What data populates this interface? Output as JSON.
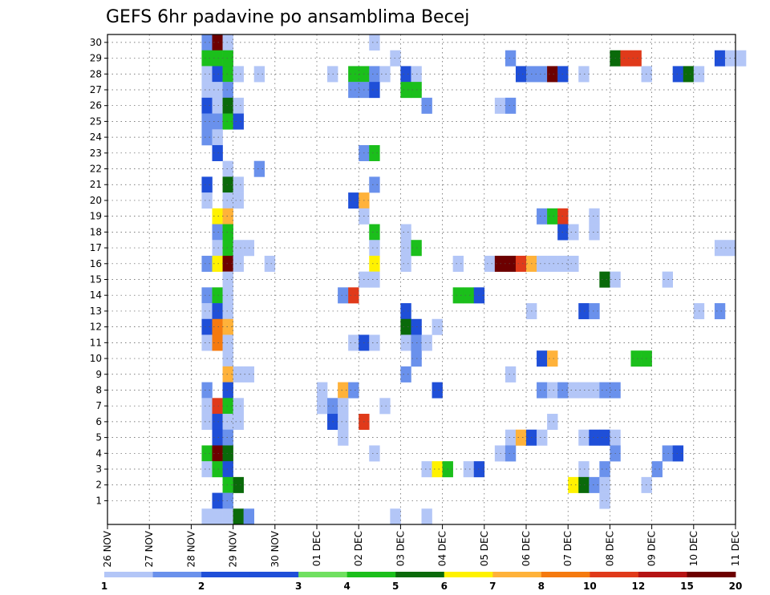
{
  "chart_data": {
    "type": "heatmap",
    "title": "GEFS 6hr padavine po ansamblima Becej",
    "xlabel": "",
    "ylabel": "",
    "grid": true,
    "x_ticks": [
      "26 NOV",
      "27 NOV",
      "28 NOV",
      "29 NOV",
      "30 NOV",
      "01 DEC",
      "02 DEC",
      "03 DEC",
      "04 DEC",
      "05 DEC",
      "06 DEC",
      "07 DEC",
      "08 DEC",
      "09 DEC",
      "10 DEC",
      "11 DEC"
    ],
    "y_ticks": [
      "1",
      "2",
      "3",
      "4",
      "5",
      "6",
      "7",
      "8",
      "9",
      "10",
      "11",
      "12",
      "13",
      "14",
      "15",
      "16",
      "17",
      "18",
      "19",
      "20",
      "21",
      "22",
      "23",
      "24",
      "25",
      "26",
      "27",
      "28",
      "29",
      "30"
    ],
    "colorbar": {
      "position": "bottom",
      "labels": [
        "1",
        "2",
        "3",
        "4",
        "5",
        "6",
        "7",
        "8",
        "10",
        "12",
        "15",
        "20"
      ],
      "colors": [
        "#b3c6f7",
        "#6a91ec",
        "#1f4fd8",
        "#1f4fd8",
        "#70e060",
        "#1bbf1b",
        "#0a6a0a",
        "#fff200",
        "#ffb23a",
        "#f57a0f",
        "#e03a1a",
        "#b51414",
        "#6d0000"
      ]
    },
    "cells": [
      {
        "m": 30,
        "t": 9,
        "v": 2
      },
      {
        "m": 30,
        "t": 10,
        "v": 20
      },
      {
        "m": 30,
        "t": 11,
        "v": 1
      },
      {
        "m": 30,
        "t": 25,
        "v": 1
      },
      {
        "m": 29,
        "t": 9,
        "v": 6
      },
      {
        "m": 29,
        "t": 10,
        "v": 6
      },
      {
        "m": 29,
        "t": 11,
        "v": 6
      },
      {
        "m": 29,
        "t": 27,
        "v": 1
      },
      {
        "m": 29,
        "t": 38,
        "v": 2
      },
      {
        "m": 29,
        "t": 48,
        "v": 7
      },
      {
        "m": 29,
        "t": 49,
        "v": 15
      },
      {
        "m": 29,
        "t": 50,
        "v": 15
      },
      {
        "m": 29,
        "t": 58,
        "v": 3
      },
      {
        "m": 29,
        "t": 59,
        "v": 1
      },
      {
        "m": 29,
        "t": 60,
        "v": 1
      },
      {
        "m": 28,
        "t": 9,
        "v": 1
      },
      {
        "m": 28,
        "t": 10,
        "v": 3
      },
      {
        "m": 28,
        "t": 11,
        "v": 5
      },
      {
        "m": 28,
        "t": 12,
        "v": 1
      },
      {
        "m": 28,
        "t": 14,
        "v": 1
      },
      {
        "m": 28,
        "t": 21,
        "v": 1
      },
      {
        "m": 28,
        "t": 23,
        "v": 5
      },
      {
        "m": 28,
        "t": 24,
        "v": 6
      },
      {
        "m": 28,
        "t": 25,
        "v": 2
      },
      {
        "m": 28,
        "t": 26,
        "v": 1
      },
      {
        "m": 28,
        "t": 28,
        "v": 3
      },
      {
        "m": 28,
        "t": 29,
        "v": 1
      },
      {
        "m": 28,
        "t": 39,
        "v": 3
      },
      {
        "m": 28,
        "t": 40,
        "v": 2
      },
      {
        "m": 28,
        "t": 41,
        "v": 2
      },
      {
        "m": 28,
        "t": 42,
        "v": 20
      },
      {
        "m": 28,
        "t": 43,
        "v": 3
      },
      {
        "m": 28,
        "t": 45,
        "v": 1
      },
      {
        "m": 28,
        "t": 51,
        "v": 1
      },
      {
        "m": 28,
        "t": 54,
        "v": 3
      },
      {
        "m": 28,
        "t": 55,
        "v": 7
      },
      {
        "m": 28,
        "t": 56,
        "v": 1
      },
      {
        "m": 27,
        "t": 9,
        "v": 1
      },
      {
        "m": 27,
        "t": 10,
        "v": 1
      },
      {
        "m": 27,
        "t": 11,
        "v": 2
      },
      {
        "m": 27,
        "t": 23,
        "v": 2
      },
      {
        "m": 27,
        "t": 24,
        "v": 2
      },
      {
        "m": 27,
        "t": 25,
        "v": 3
      },
      {
        "m": 27,
        "t": 28,
        "v": 6
      },
      {
        "m": 27,
        "t": 29,
        "v": 6
      },
      {
        "m": 26,
        "t": 9,
        "v": 3
      },
      {
        "m": 26,
        "t": 10,
        "v": 1
      },
      {
        "m": 26,
        "t": 11,
        "v": 7
      },
      {
        "m": 26,
        "t": 12,
        "v": 1
      },
      {
        "m": 26,
        "t": 30,
        "v": 2
      },
      {
        "m": 26,
        "t": 37,
        "v": 1
      },
      {
        "m": 26,
        "t": 38,
        "v": 2
      },
      {
        "m": 25,
        "t": 9,
        "v": 2
      },
      {
        "m": 25,
        "t": 10,
        "v": 2
      },
      {
        "m": 25,
        "t": 11,
        "v": 5
      },
      {
        "m": 25,
        "t": 12,
        "v": 3
      },
      {
        "m": 24,
        "t": 9,
        "v": 2
      },
      {
        "m": 24,
        "t": 10,
        "v": 1
      },
      {
        "m": 23,
        "t": 10,
        "v": 3
      },
      {
        "m": 23,
        "t": 24,
        "v": 2
      },
      {
        "m": 23,
        "t": 25,
        "v": 6
      },
      {
        "m": 22,
        "t": 11,
        "v": 1
      },
      {
        "m": 22,
        "t": 14,
        "v": 2
      },
      {
        "m": 21,
        "t": 9,
        "v": 3
      },
      {
        "m": 21,
        "t": 11,
        "v": 7
      },
      {
        "m": 21,
        "t": 12,
        "v": 1
      },
      {
        "m": 21,
        "t": 25,
        "v": 2
      },
      {
        "m": 20,
        "t": 9,
        "v": 1
      },
      {
        "m": 20,
        "t": 11,
        "v": 1
      },
      {
        "m": 20,
        "t": 12,
        "v": 1
      },
      {
        "m": 20,
        "t": 23,
        "v": 3
      },
      {
        "m": 20,
        "t": 24,
        "v": 10
      },
      {
        "m": 19,
        "t": 10,
        "v": 8
      },
      {
        "m": 19,
        "t": 11,
        "v": 10
      },
      {
        "m": 19,
        "t": 24,
        "v": 1
      },
      {
        "m": 19,
        "t": 41,
        "v": 2
      },
      {
        "m": 19,
        "t": 42,
        "v": 6
      },
      {
        "m": 19,
        "t": 43,
        "v": 15
      },
      {
        "m": 19,
        "t": 46,
        "v": 1
      },
      {
        "m": 18,
        "t": 10,
        "v": 2
      },
      {
        "m": 18,
        "t": 11,
        "v": 5
      },
      {
        "m": 18,
        "t": 25,
        "v": 5
      },
      {
        "m": 18,
        "t": 28,
        "v": 1
      },
      {
        "m": 18,
        "t": 43,
        "v": 3
      },
      {
        "m": 18,
        "t": 44,
        "v": 1
      },
      {
        "m": 18,
        "t": 46,
        "v": 1
      },
      {
        "m": 17,
        "t": 10,
        "v": 1
      },
      {
        "m": 17,
        "t": 11,
        "v": 5
      },
      {
        "m": 17,
        "t": 12,
        "v": 1
      },
      {
        "m": 17,
        "t": 13,
        "v": 1
      },
      {
        "m": 17,
        "t": 25,
        "v": 1
      },
      {
        "m": 17,
        "t": 28,
        "v": 1
      },
      {
        "m": 17,
        "t": 29,
        "v": 5
      },
      {
        "m": 17,
        "t": 58,
        "v": 1
      },
      {
        "m": 17,
        "t": 59,
        "v": 1
      },
      {
        "m": 16,
        "t": 9,
        "v": 2
      },
      {
        "m": 16,
        "t": 10,
        "v": 8
      },
      {
        "m": 16,
        "t": 11,
        "v": 20
      },
      {
        "m": 16,
        "t": 12,
        "v": 1
      },
      {
        "m": 16,
        "t": 15,
        "v": 1
      },
      {
        "m": 16,
        "t": 25,
        "v": 8
      },
      {
        "m": 16,
        "t": 28,
        "v": 1
      },
      {
        "m": 16,
        "t": 33,
        "v": 1
      },
      {
        "m": 16,
        "t": 36,
        "v": 1
      },
      {
        "m": 16,
        "t": 37,
        "v": 20
      },
      {
        "m": 16,
        "t": 38,
        "v": 20
      },
      {
        "m": 16,
        "t": 39,
        "v": 15
      },
      {
        "m": 16,
        "t": 40,
        "v": 10
      },
      {
        "m": 16,
        "t": 41,
        "v": 1
      },
      {
        "m": 16,
        "t": 42,
        "v": 1
      },
      {
        "m": 16,
        "t": 43,
        "v": 1
      },
      {
        "m": 16,
        "t": 44,
        "v": 1
      },
      {
        "m": 15,
        "t": 11,
        "v": 1
      },
      {
        "m": 15,
        "t": 24,
        "v": 1
      },
      {
        "m": 15,
        "t": 25,
        "v": 1
      },
      {
        "m": 15,
        "t": 47,
        "v": 7
      },
      {
        "m": 15,
        "t": 48,
        "v": 1
      },
      {
        "m": 15,
        "t": 53,
        "v": 1
      },
      {
        "m": 14,
        "t": 9,
        "v": 2
      },
      {
        "m": 14,
        "t": 10,
        "v": 5
      },
      {
        "m": 14,
        "t": 11,
        "v": 1
      },
      {
        "m": 14,
        "t": 22,
        "v": 2
      },
      {
        "m": 14,
        "t": 23,
        "v": 15
      },
      {
        "m": 14,
        "t": 33,
        "v": 5
      },
      {
        "m": 14,
        "t": 34,
        "v": 6
      },
      {
        "m": 14,
        "t": 35,
        "v": 3
      },
      {
        "m": 13,
        "t": 9,
        "v": 1
      },
      {
        "m": 13,
        "t": 10,
        "v": 3
      },
      {
        "m": 13,
        "t": 11,
        "v": 1
      },
      {
        "m": 13,
        "t": 28,
        "v": 3
      },
      {
        "m": 13,
        "t": 40,
        "v": 1
      },
      {
        "m": 13,
        "t": 45,
        "v": 3
      },
      {
        "m": 13,
        "t": 46,
        "v": 2
      },
      {
        "m": 13,
        "t": 56,
        "v": 1
      },
      {
        "m": 13,
        "t": 58,
        "v": 2
      },
      {
        "m": 12,
        "t": 9,
        "v": 3
      },
      {
        "m": 12,
        "t": 10,
        "v": 12
      },
      {
        "m": 12,
        "t": 11,
        "v": 10
      },
      {
        "m": 12,
        "t": 28,
        "v": 7
      },
      {
        "m": 12,
        "t": 29,
        "v": 3
      },
      {
        "m": 12,
        "t": 31,
        "v": 1
      },
      {
        "m": 11,
        "t": 9,
        "v": 1
      },
      {
        "m": 11,
        "t": 10,
        "v": 12
      },
      {
        "m": 11,
        "t": 11,
        "v": 1
      },
      {
        "m": 11,
        "t": 23,
        "v": 1
      },
      {
        "m": 11,
        "t": 24,
        "v": 3
      },
      {
        "m": 11,
        "t": 25,
        "v": 1
      },
      {
        "m": 11,
        "t": 28,
        "v": 1
      },
      {
        "m": 11,
        "t": 29,
        "v": 2
      },
      {
        "m": 11,
        "t": 30,
        "v": 1
      },
      {
        "m": 10,
        "t": 11,
        "v": 1
      },
      {
        "m": 10,
        "t": 29,
        "v": 2
      },
      {
        "m": 10,
        "t": 41,
        "v": 3
      },
      {
        "m": 10,
        "t": 42,
        "v": 10
      },
      {
        "m": 10,
        "t": 50,
        "v": 6
      },
      {
        "m": 10,
        "t": 51,
        "v": 5
      },
      {
        "m": 9,
        "t": 11,
        "v": 10
      },
      {
        "m": 9,
        "t": 12,
        "v": 1
      },
      {
        "m": 9,
        "t": 13,
        "v": 1
      },
      {
        "m": 9,
        "t": 28,
        "v": 2
      },
      {
        "m": 9,
        "t": 38,
        "v": 1
      },
      {
        "m": 8,
        "t": 9,
        "v": 2
      },
      {
        "m": 8,
        "t": 11,
        "v": 3
      },
      {
        "m": 8,
        "t": 20,
        "v": 1
      },
      {
        "m": 8,
        "t": 22,
        "v": 10
      },
      {
        "m": 8,
        "t": 23,
        "v": 2
      },
      {
        "m": 8,
        "t": 31,
        "v": 3
      },
      {
        "m": 8,
        "t": 41,
        "v": 2
      },
      {
        "m": 8,
        "t": 42,
        "v": 1
      },
      {
        "m": 8,
        "t": 43,
        "v": 2
      },
      {
        "m": 8,
        "t": 44,
        "v": 1
      },
      {
        "m": 8,
        "t": 45,
        "v": 1
      },
      {
        "m": 8,
        "t": 46,
        "v": 1
      },
      {
        "m": 8,
        "t": 47,
        "v": 2
      },
      {
        "m": 8,
        "t": 48,
        "v": 2
      },
      {
        "m": 7,
        "t": 9,
        "v": 1
      },
      {
        "m": 7,
        "t": 10,
        "v": 15
      },
      {
        "m": 7,
        "t": 11,
        "v": 5
      },
      {
        "m": 7,
        "t": 12,
        "v": 1
      },
      {
        "m": 7,
        "t": 20,
        "v": 1
      },
      {
        "m": 7,
        "t": 21,
        "v": 2
      },
      {
        "m": 7,
        "t": 22,
        "v": 1
      },
      {
        "m": 7,
        "t": 26,
        "v": 1
      },
      {
        "m": 6,
        "t": 9,
        "v": 1
      },
      {
        "m": 6,
        "t": 10,
        "v": 3
      },
      {
        "m": 6,
        "t": 11,
        "v": 1
      },
      {
        "m": 6,
        "t": 12,
        "v": 1
      },
      {
        "m": 6,
        "t": 21,
        "v": 3
      },
      {
        "m": 6,
        "t": 22,
        "v": 1
      },
      {
        "m": 6,
        "t": 24,
        "v": 15
      },
      {
        "m": 6,
        "t": 42,
        "v": 1
      },
      {
        "m": 5,
        "t": 10,
        "v": 3
      },
      {
        "m": 5,
        "t": 11,
        "v": 2
      },
      {
        "m": 5,
        "t": 22,
        "v": 1
      },
      {
        "m": 5,
        "t": 38,
        "v": 1
      },
      {
        "m": 5,
        "t": 39,
        "v": 10
      },
      {
        "m": 5,
        "t": 40,
        "v": 3
      },
      {
        "m": 5,
        "t": 41,
        "v": 1
      },
      {
        "m": 5,
        "t": 45,
        "v": 1
      },
      {
        "m": 5,
        "t": 46,
        "v": 3
      },
      {
        "m": 5,
        "t": 47,
        "v": 3
      },
      {
        "m": 5,
        "t": 48,
        "v": 1
      },
      {
        "m": 4,
        "t": 9,
        "v": 5
      },
      {
        "m": 4,
        "t": 10,
        "v": 20
      },
      {
        "m": 4,
        "t": 11,
        "v": 7
      },
      {
        "m": 4,
        "t": 25,
        "v": 1
      },
      {
        "m": 4,
        "t": 37,
        "v": 1
      },
      {
        "m": 4,
        "t": 38,
        "v": 2
      },
      {
        "m": 4,
        "t": 48,
        "v": 2
      },
      {
        "m": 4,
        "t": 53,
        "v": 2
      },
      {
        "m": 4,
        "t": 54,
        "v": 3
      },
      {
        "m": 3,
        "t": 9,
        "v": 1
      },
      {
        "m": 3,
        "t": 10,
        "v": 5
      },
      {
        "m": 3,
        "t": 11,
        "v": 3
      },
      {
        "m": 3,
        "t": 30,
        "v": 1
      },
      {
        "m": 3,
        "t": 31,
        "v": 8
      },
      {
        "m": 3,
        "t": 32,
        "v": 6
      },
      {
        "m": 3,
        "t": 34,
        "v": 1
      },
      {
        "m": 3,
        "t": 35,
        "v": 3
      },
      {
        "m": 3,
        "t": 45,
        "v": 1
      },
      {
        "m": 3,
        "t": 47,
        "v": 2
      },
      {
        "m": 3,
        "t": 52,
        "v": 2
      },
      {
        "m": 2,
        "t": 11,
        "v": 6
      },
      {
        "m": 2,
        "t": 12,
        "v": 7
      },
      {
        "m": 2,
        "t": 44,
        "v": 8
      },
      {
        "m": 2,
        "t": 45,
        "v": 7
      },
      {
        "m": 2,
        "t": 46,
        "v": 2
      },
      {
        "m": 2,
        "t": 47,
        "v": 1
      },
      {
        "m": 2,
        "t": 51,
        "v": 1
      },
      {
        "m": 1,
        "t": 10,
        "v": 3
      },
      {
        "m": 1,
        "t": 11,
        "v": 2
      },
      {
        "m": 1,
        "t": 47,
        "v": 1
      },
      {
        "m": 0,
        "t": 9,
        "v": 1
      },
      {
        "m": 0,
        "t": 10,
        "v": 1
      },
      {
        "m": 0,
        "t": 11,
        "v": 1
      },
      {
        "m": 0,
        "t": 12,
        "v": 7
      },
      {
        "m": 0,
        "t": 13,
        "v": 2
      },
      {
        "m": 0,
        "t": 27,
        "v": 1
      },
      {
        "m": 0,
        "t": 30,
        "v": 1
      }
    ]
  }
}
